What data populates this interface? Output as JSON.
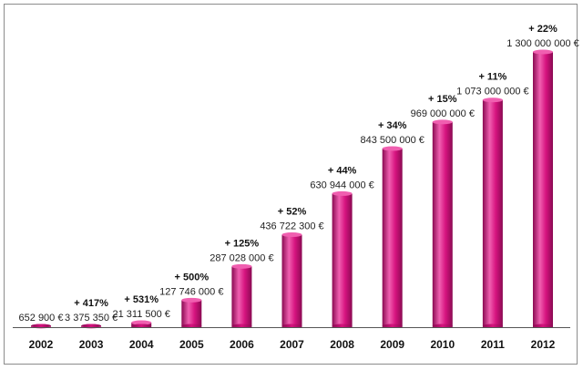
{
  "chart_data": {
    "type": "bar",
    "categories": [
      "2002",
      "2003",
      "2004",
      "2005",
      "2006",
      "2007",
      "2008",
      "2009",
      "2010",
      "2011",
      "2012"
    ],
    "values": [
      652900,
      3375350,
      21311500,
      127746000,
      287028000,
      436722300,
      630944000,
      843500000,
      969000000,
      1073000000,
      1300000000
    ],
    "value_labels": [
      "652 900 €",
      "3 375 350 €",
      "21 311 500 €",
      "127 746 000 €",
      "287 028 000 €",
      "436 722 300 €",
      "630 944 000 €",
      "843 500 000 €",
      "969 000 000 €",
      "1 073 000 000 €",
      "1 300 000 000 €"
    ],
    "growth_labels": [
      "",
      "+ 417%",
      "+ 531%",
      "+ 500%",
      "+ 125%",
      "+ 52%",
      "+ 44%",
      "+ 34%",
      "+ 15%",
      "+ 11%",
      "+ 22%"
    ],
    "title": "",
    "xlabel": "",
    "ylabel": "",
    "ylim": [
      0,
      1300000000
    ],
    "grid": false,
    "legend": "none",
    "colors": {
      "bar": "#d6137f",
      "bar_light": "#f05fb0",
      "bar_dark": "#8a0a52",
      "axis": "#555555"
    }
  }
}
